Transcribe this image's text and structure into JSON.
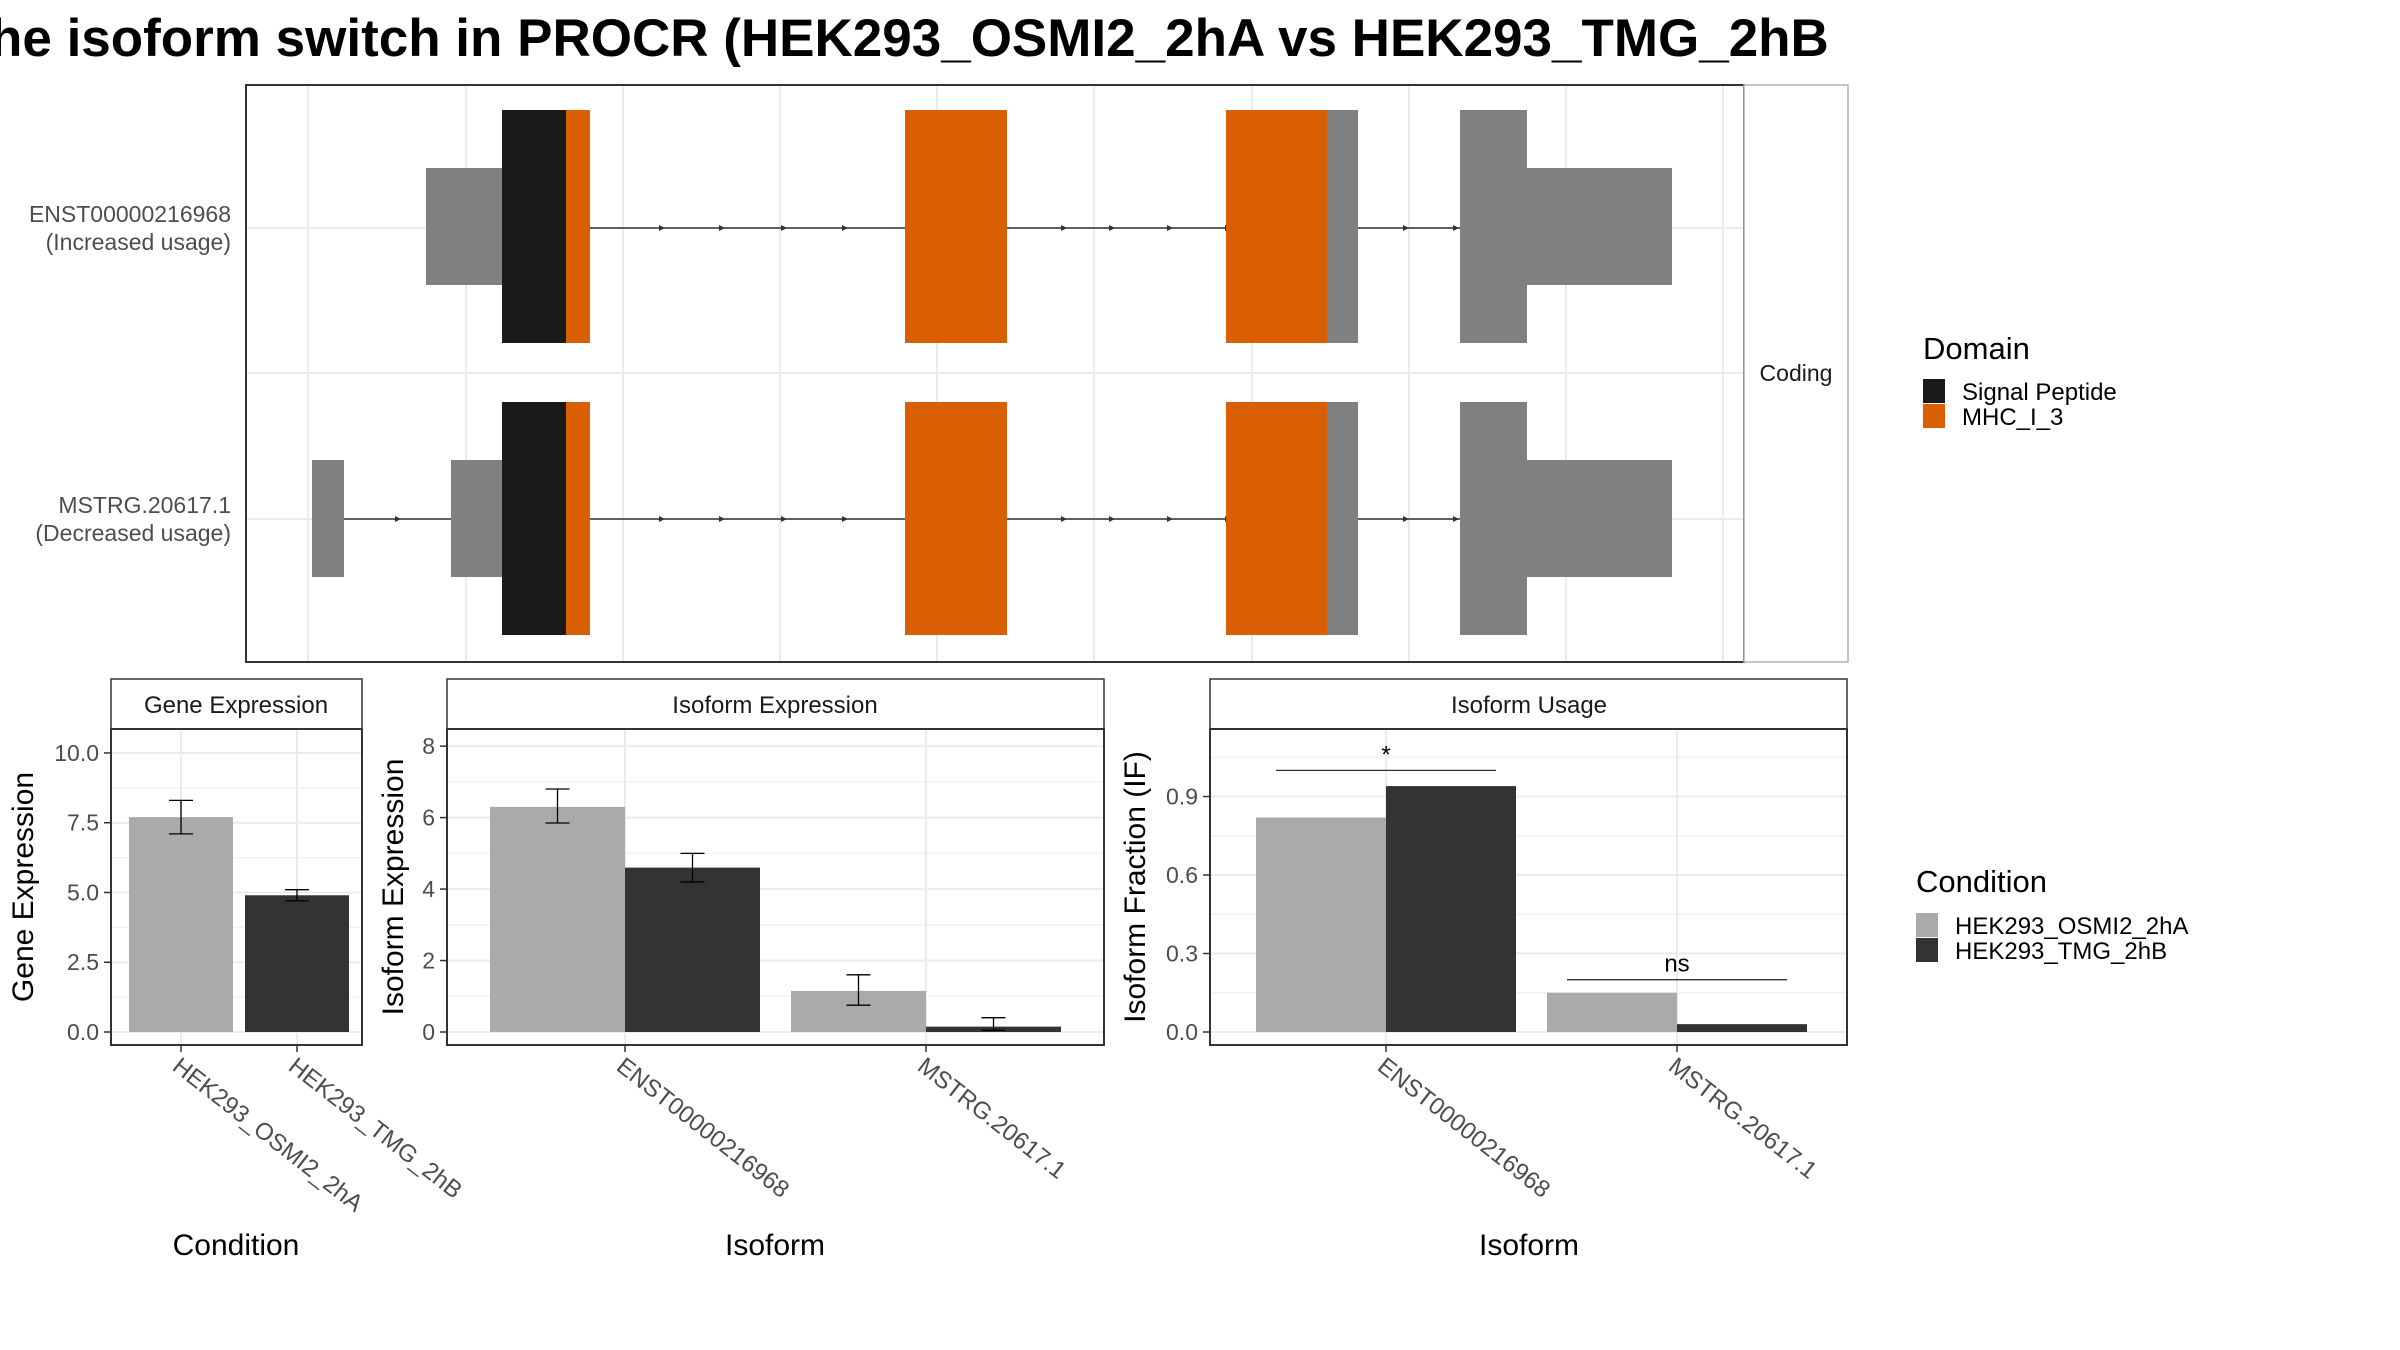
{
  "title": "he isoform switch in PROCR (HEK293_OSMI2_2hA vs HEK293_TMG_2hB",
  "colors": {
    "signal_peptide": "#1a1a1a",
    "mhc": "#d95f02",
    "utr": "#808080",
    "cond_a": "#aaaaaa",
    "cond_b": "#333333",
    "grid": "#ebebeb",
    "strip_bg": "#ffffff"
  },
  "structure": {
    "strip_label": "Coding",
    "isoforms": [
      {
        "id": "ENST00000216968",
        "label_line1": "ENST00000216968",
        "label_line2": "(Increased usage)"
      },
      {
        "id": "MSTRG.20617.1",
        "label_line1": "MSTRG.20617.1",
        "label_line2": "(Decreased usage)"
      }
    ]
  },
  "legend_domain": {
    "title": "Domain",
    "items": [
      {
        "label": "Signal Peptide",
        "color": "#1a1a1a"
      },
      {
        "label": "MHC_I_3",
        "color": "#d95f02"
      }
    ]
  },
  "legend_condition": {
    "title": "Condition",
    "items": [
      {
        "label": "HEK293_OSMI2_2hA",
        "color": "#aaaaaa"
      },
      {
        "label": "HEK293_TMG_2hB",
        "color": "#333333"
      }
    ]
  },
  "chart_data": [
    {
      "type": "bar",
      "title": "Gene Expression",
      "xlabel": "Condition",
      "ylabel": "Gene Expression",
      "ylim": [
        0,
        10.5
      ],
      "yticks": [
        "0.0",
        "2.5",
        "5.0",
        "7.5",
        "10.0"
      ],
      "ytick_values": [
        0,
        2.5,
        5,
        7.5,
        10
      ],
      "categories": [
        "HEK293_OSMI2_2hA",
        "HEK293_TMG_2hB"
      ],
      "values": [
        7.7,
        4.9
      ],
      "errors": [
        [
          7.1,
          8.3
        ],
        [
          4.7,
          5.1
        ]
      ]
    },
    {
      "type": "bar",
      "title": "Isoform Expression",
      "xlabel": "Isoform",
      "ylabel": "Isoform Expression",
      "ylim": [
        0,
        8.2
      ],
      "yticks": [
        "0",
        "2",
        "4",
        "6",
        "8"
      ],
      "ytick_values": [
        0,
        2,
        4,
        6,
        8
      ],
      "categories": [
        "ENST00000216968",
        "MSTRG.20617.1"
      ],
      "series": [
        {
          "name": "HEK293_OSMI2_2hA",
          "values": [
            6.3,
            1.15
          ],
          "errors": [
            [
              5.85,
              6.8
            ],
            [
              0.75,
              1.6
            ]
          ]
        },
        {
          "name": "HEK293_TMG_2hB",
          "values": [
            4.6,
            0.15
          ],
          "errors": [
            [
              4.2,
              5.0
            ],
            [
              0.05,
              0.4
            ]
          ]
        }
      ]
    },
    {
      "type": "bar",
      "title": "Isoform Usage",
      "xlabel": "Isoform",
      "ylabel": "Isoform Fraction (IF)",
      "ylim": [
        0,
        1.12
      ],
      "yticks": [
        "0.0",
        "0.3",
        "0.6",
        "0.9"
      ],
      "ytick_values": [
        0,
        0.3,
        0.6,
        0.9
      ],
      "categories": [
        "ENST00000216968",
        "MSTRG.20617.1"
      ],
      "series": [
        {
          "name": "HEK293_OSMI2_2hA",
          "values": [
            0.82,
            0.15
          ]
        },
        {
          "name": "HEK293_TMG_2hB",
          "values": [
            0.94,
            0.03
          ]
        }
      ],
      "significance": [
        {
          "label": "*",
          "y": 1.0
        },
        {
          "label": "ns",
          "y": 0.2
        }
      ]
    }
  ]
}
